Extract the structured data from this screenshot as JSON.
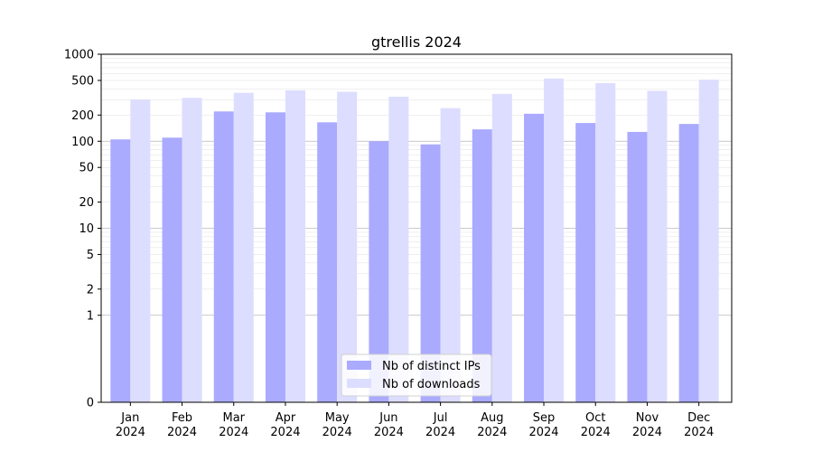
{
  "chart_data": {
    "type": "bar",
    "title": "gtrellis 2024",
    "xlabel": "",
    "ylabel": "",
    "yscale": "symlog",
    "ylim": [
      0,
      1000
    ],
    "yticks": [
      0,
      1,
      2,
      5,
      10,
      20,
      50,
      100,
      200,
      500,
      1000
    ],
    "categories": [
      [
        "Jan",
        "2024"
      ],
      [
        "Feb",
        "2024"
      ],
      [
        "Mar",
        "2024"
      ],
      [
        "Apr",
        "2024"
      ],
      [
        "May",
        "2024"
      ],
      [
        "Jun",
        "2024"
      ],
      [
        "Jul",
        "2024"
      ],
      [
        "Aug",
        "2024"
      ],
      [
        "Sep",
        "2024"
      ],
      [
        "Oct",
        "2024"
      ],
      [
        "Nov",
        "2024"
      ],
      [
        "Dec",
        "2024"
      ]
    ],
    "series": [
      {
        "name": "Nb of distinct IPs",
        "color": "#aaaaff",
        "values": [
          105,
          110,
          220,
          215,
          165,
          100,
          92,
          137,
          207,
          162,
          128,
          158
        ]
      },
      {
        "name": "Nb of downloads",
        "color": "#ddddff",
        "values": [
          300,
          315,
          360,
          385,
          370,
          325,
          240,
          350,
          525,
          465,
          380,
          510
        ]
      }
    ],
    "legend_position": "lower center",
    "grid": "horizontal"
  }
}
